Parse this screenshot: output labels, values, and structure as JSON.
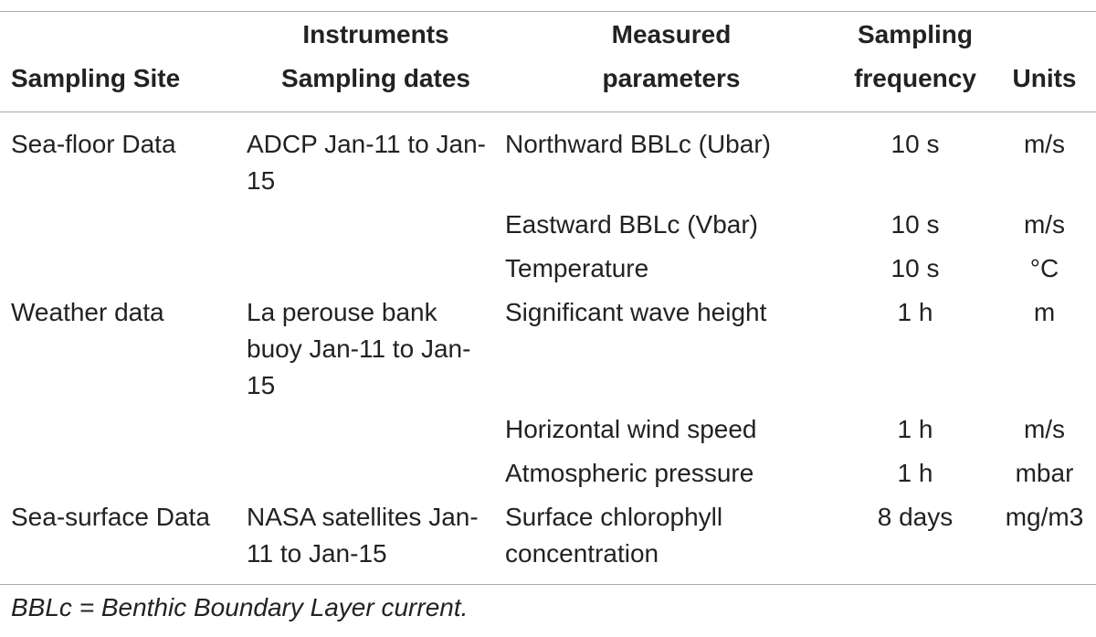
{
  "table": {
    "header": [
      [
        "Sampling Site"
      ],
      [
        "Instruments",
        "Sampling dates"
      ],
      [
        "Measured",
        "parameters"
      ],
      [
        "Sampling",
        "frequency"
      ],
      [
        "Units"
      ]
    ],
    "rows": [
      [
        "Sea-floor Data",
        "ADCP Jan-11 to Jan-15",
        "Northward BBLc (Ubar)",
        "10 s",
        "m/s"
      ],
      [
        null,
        null,
        "Eastward BBLc (Vbar)",
        "10 s",
        "m/s"
      ],
      [
        null,
        null,
        "Temperature",
        "10 s",
        "°C"
      ],
      [
        "Weather data",
        "La perouse bank buoy Jan-11 to Jan-15",
        "Significant wave height",
        "1 h",
        "m"
      ],
      [
        null,
        null,
        "Horizontal wind speed",
        "1 h",
        "m/s"
      ],
      [
        null,
        null,
        "Atmospheric pressure",
        "1 h",
        "mbar"
      ],
      [
        "Sea-surface Data",
        "NASA satellites Jan-11 to Jan-15",
        "Surface chlorophyll concentration",
        "8 days",
        "mg/m3"
      ]
    ],
    "footnote": "BBLc = Benthic Boundary Layer current."
  }
}
